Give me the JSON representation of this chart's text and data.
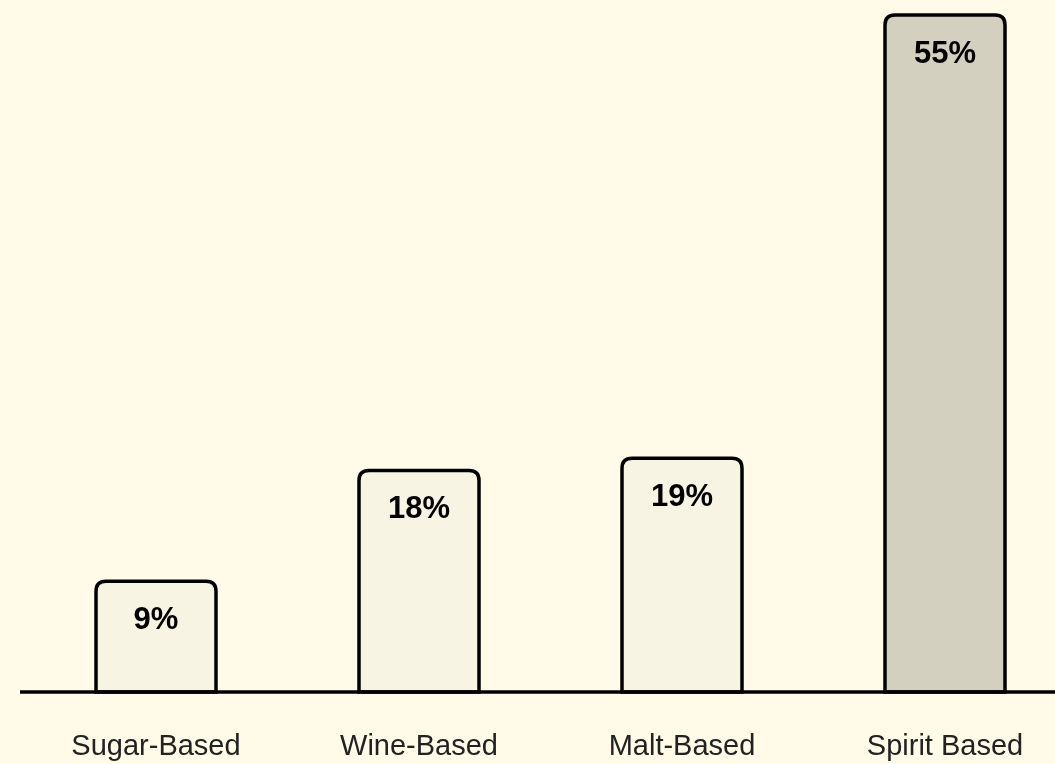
{
  "chart_data": {
    "type": "bar",
    "categories": [
      "Sugar-Based",
      "Wine-Based",
      "Malt-Based",
      "Spirit Based"
    ],
    "values": [
      9,
      18,
      19,
      55
    ],
    "value_labels": [
      "9%",
      "18%",
      "19%",
      "55%"
    ],
    "colors": [
      "#f8f4e3",
      "#f8f4e3",
      "#f8f4e3",
      "#d4d0c0"
    ]
  }
}
